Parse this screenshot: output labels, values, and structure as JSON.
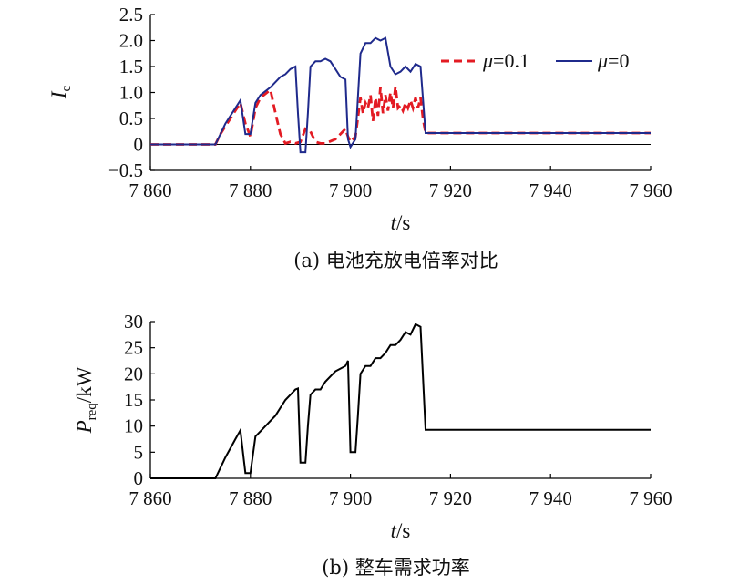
{
  "chart_data": [
    {
      "type": "line",
      "caption": "(a) 电池充放电倍率对比",
      "xlabel_var": "t",
      "xlabel_unit": "/s",
      "ylabel_var": "I",
      "ylabel_sub": "c",
      "xlim": [
        7860,
        7960
      ],
      "ylim": [
        -0.5,
        2.5
      ],
      "xticks": [
        7860,
        7880,
        7900,
        7920,
        7940,
        7960
      ],
      "xtick_labels": [
        "7 860",
        "7 880",
        "7 900",
        "7 920",
        "7 940",
        "7 960"
      ],
      "yticks": [
        -0.5,
        0,
        0.5,
        1.0,
        1.5,
        2.0,
        2.5
      ],
      "ytick_labels": [
        "−0.5",
        "0",
        "0.5",
        "1.0",
        "1.5",
        "2.0",
        "2.5"
      ],
      "legend_position": "top-right",
      "series": [
        {
          "name_var": "μ",
          "name_val": "=0.1",
          "color": "#e31b23",
          "dash": "dashed",
          "x": [
            7860,
            7873,
            7874,
            7876,
            7878,
            7879,
            7880,
            7881,
            7882,
            7884,
            7885,
            7886,
            7887,
            7888,
            7889,
            7890,
            7891,
            7892,
            7893,
            7894,
            7895,
            7896,
            7897,
            7898,
            7899,
            7899.5,
            7900,
            7901,
            7902,
            7902.5,
            7903,
            7903.5,
            7904,
            7904.5,
            7905,
            7905.5,
            7906,
            7906.5,
            7907,
            7907.5,
            7908,
            7908.5,
            7909,
            7909.5,
            7910,
            7910.5,
            7911,
            7911.5,
            7912,
            7912.5,
            7913,
            7913.5,
            7914,
            7914.5,
            7915,
            7960
          ],
          "y": [
            0,
            0,
            0.2,
            0.5,
            0.8,
            0.4,
            0.15,
            0.7,
            0.9,
            1.05,
            0.6,
            0.2,
            0.02,
            0.05,
            0.02,
            0.05,
            0.3,
            0.25,
            0.05,
            0.02,
            0.02,
            0.06,
            0.1,
            0.2,
            0.3,
            0.15,
            0.05,
            0.15,
            0.9,
            0.6,
            0.8,
            0.7,
            0.95,
            0.45,
            0.9,
            0.55,
            1.1,
            0.6,
            0.95,
            0.65,
            1.0,
            0.7,
            1.12,
            0.7,
            0.75,
            0.65,
            0.8,
            0.7,
            0.85,
            0.7,
            0.9,
            0.7,
            0.9,
            0.5,
            0.22,
            0.22
          ]
        },
        {
          "name_var": "μ",
          "name_val": "=0",
          "color": "#1f2a8c",
          "dash": "solid",
          "x": [
            7860,
            7873,
            7875,
            7878,
            7879,
            7880,
            7881,
            7882,
            7884,
            7885,
            7886,
            7887,
            7888,
            7889,
            7889.5,
            7890,
            7891,
            7891.5,
            7892,
            7893,
            7894,
            7895,
            7896,
            7897,
            7898,
            7899,
            7899.5,
            7900,
            7901,
            7902,
            7903,
            7904,
            7905,
            7906,
            7907,
            7908,
            7909,
            7910,
            7911,
            7912,
            7913,
            7914,
            7915,
            7960
          ],
          "y": [
            0,
            0,
            0.4,
            0.85,
            0.2,
            0.2,
            0.8,
            0.95,
            1.1,
            1.2,
            1.3,
            1.35,
            1.45,
            1.5,
            0.6,
            -0.15,
            -0.15,
            0.6,
            1.5,
            1.6,
            1.6,
            1.65,
            1.6,
            1.45,
            1.3,
            1.25,
            0.1,
            -0.05,
            0.1,
            1.75,
            1.95,
            1.95,
            2.05,
            2.0,
            2.05,
            1.5,
            1.35,
            1.4,
            1.5,
            1.4,
            1.55,
            1.5,
            0.22,
            0.22
          ]
        }
      ]
    },
    {
      "type": "line",
      "caption": "(b) 整车需求功率",
      "xlabel_var": "t",
      "xlabel_unit": "/s",
      "ylabel_var": "P",
      "ylabel_sub": "req",
      "ylabel_unit": "/kW",
      "xlim": [
        7860,
        7960
      ],
      "ylim": [
        0,
        30
      ],
      "xticks": [
        7860,
        7880,
        7900,
        7920,
        7940,
        7960
      ],
      "xtick_labels": [
        "7 860",
        "7 880",
        "7 900",
        "7 920",
        "7 940",
        "7 960"
      ],
      "yticks": [
        0,
        5,
        10,
        15,
        20,
        25,
        30
      ],
      "ytick_labels": [
        "0",
        "5",
        "10",
        "15",
        "20",
        "25",
        "30"
      ],
      "series": [
        {
          "color": "#000000",
          "dash": "solid",
          "x": [
            7860,
            7873,
            7875,
            7877,
            7878,
            7879,
            7880,
            7881,
            7882,
            7884,
            7885,
            7886,
            7887,
            7888,
            7889,
            7889.5,
            7890,
            7891,
            7891.5,
            7892,
            7893,
            7894,
            7895,
            7896,
            7897,
            7898,
            7899,
            7899.5,
            7900,
            7901,
            7901.5,
            7902,
            7903,
            7904,
            7905,
            7906,
            7907,
            7908,
            7909,
            7910,
            7911,
            7912,
            7913,
            7914,
            7915,
            7960
          ],
          "y": [
            0,
            0,
            4,
            7.5,
            9.2,
            1,
            1,
            8,
            9,
            11,
            12,
            13.5,
            15,
            16,
            17,
            17.2,
            3,
            3,
            10,
            16,
            17,
            17,
            18.5,
            19.5,
            20.5,
            21,
            21.5,
            22.5,
            5,
            5,
            12,
            20,
            21.5,
            21.5,
            23,
            23,
            24,
            25.5,
            25.5,
            26.5,
            28,
            27.5,
            29.5,
            29,
            9.3,
            9.3
          ]
        }
      ]
    }
  ]
}
